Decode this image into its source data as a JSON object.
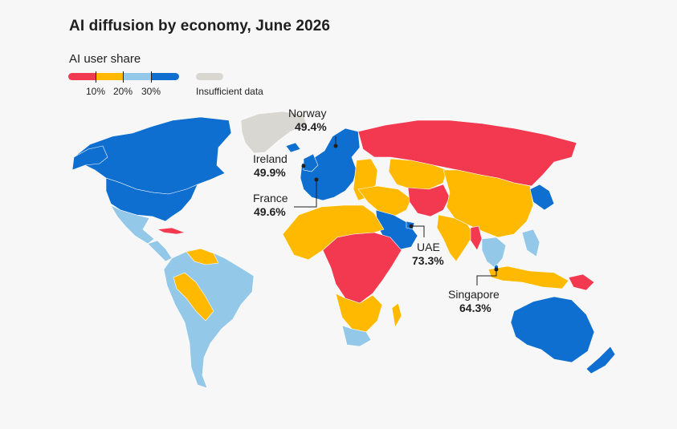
{
  "title": "AI diffusion by economy, June 2026",
  "legend": {
    "title": "AI user share",
    "colors": [
      "#f2394f",
      "#ffb900",
      "#93c8e8",
      "#0f6fd0"
    ],
    "thresholds": [
      "10%",
      "20%",
      "30%"
    ],
    "insufficient_label": "Insufficient data",
    "insufficient_color": "#d9d7d2"
  },
  "callouts": [
    {
      "name": "Norway",
      "value": "49.4%"
    },
    {
      "name": "Ireland",
      "value": "49.9%"
    },
    {
      "name": "France",
      "value": "49.6%"
    },
    {
      "name": "UAE",
      "value": "73.3%"
    },
    {
      "name": "Singapore",
      "value": "64.3%"
    }
  ]
}
